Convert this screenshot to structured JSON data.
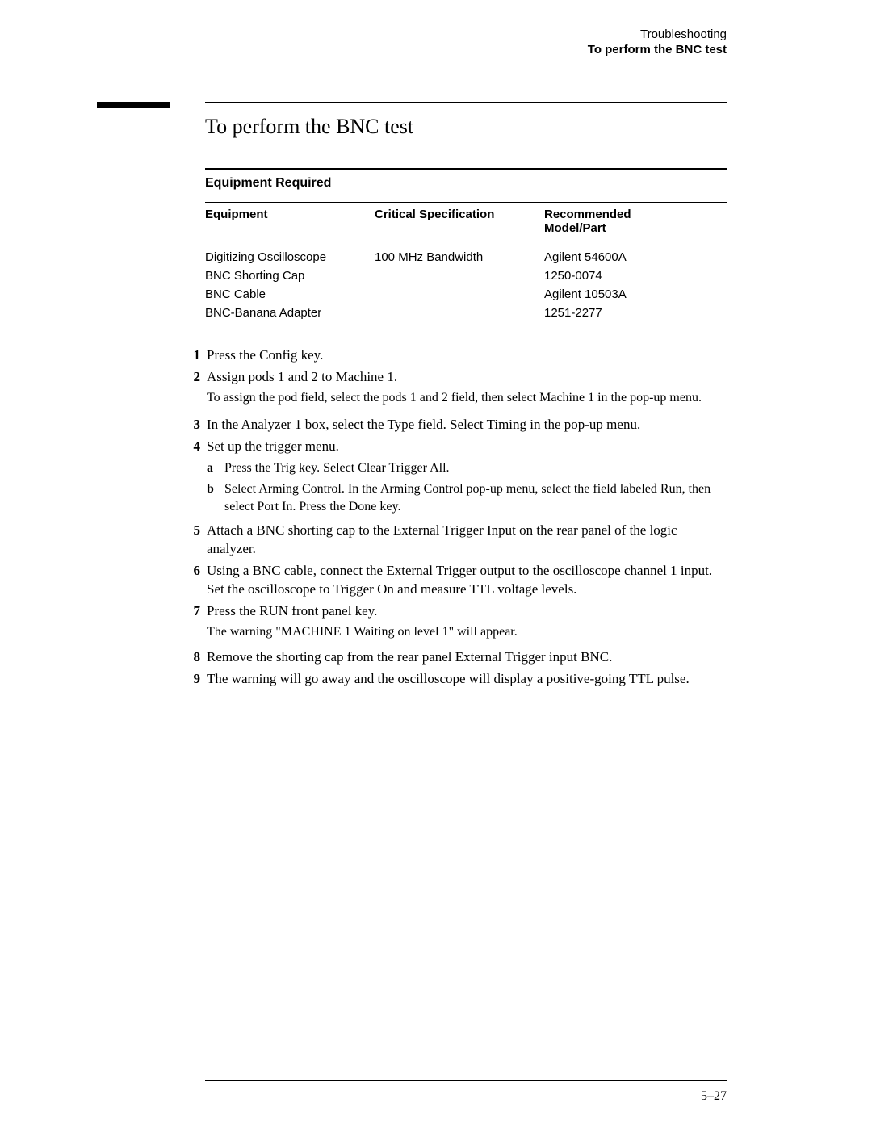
{
  "header": {
    "line1": "Troubleshooting",
    "line2": "To perform the BNC test"
  },
  "section_title": "To perform the BNC test",
  "equipment": {
    "caption": "Equipment Required",
    "columns": [
      "Equipment",
      "Critical Specification",
      "Recommended Model/Part"
    ],
    "rows": [
      {
        "c1": "Digitizing Oscilloscope",
        "c2": "100 MHz Bandwidth",
        "c3": "Agilent 54600A"
      },
      {
        "c1": "BNC Shorting Cap",
        "c2": "",
        "c3": "1250-0074"
      },
      {
        "c1": "BNC Cable",
        "c2": "",
        "c3": "Agilent 10503A"
      },
      {
        "c1": "BNC-Banana Adapter",
        "c2": "",
        "c3": "1251-2277"
      }
    ]
  },
  "steps": [
    {
      "n": "1",
      "text": "Press the Config key."
    },
    {
      "n": "2",
      "text": "Assign pods 1 and 2 to Machine 1.",
      "sub": "To assign the pod field, select the pods 1 and 2 field, then select Machine 1 in the pop-up menu."
    },
    {
      "n": "3",
      "text": "In the Analyzer 1 box, select the Type field.  Select Timing in the pop-up menu."
    },
    {
      "n": "4",
      "text": "Set up the trigger menu.",
      "subitems": [
        {
          "l": "a",
          "t": "Press the Trig key.  Select Clear Trigger All."
        },
        {
          "l": "b",
          "t": "Select Arming Control.  In the Arming Control pop-up menu, select the field labeled Run, then select Port In.  Press the Done key."
        }
      ]
    },
    {
      "n": "5",
      "text": "Attach a BNC shorting cap to the External Trigger Input on the rear panel of the logic analyzer."
    },
    {
      "n": "6",
      "text": "Using a BNC cable, connect the External Trigger output to the oscilloscope channel 1 input.  Set the oscilloscope to Trigger On and measure TTL voltage levels."
    },
    {
      "n": "7",
      "text": "Press the RUN front panel key.",
      "note": "The warning \"MACHINE 1 Waiting on level 1\" will appear."
    },
    {
      "n": "8",
      "text": "Remove the shorting cap from the rear panel External Trigger input BNC."
    },
    {
      "n": "9",
      "text": "The warning will go away and the oscilloscope will display a positive-going TTL pulse."
    }
  ],
  "page_number": "5–27",
  "colors": {
    "text": "#000000",
    "background": "#ffffff",
    "rule": "#000000"
  },
  "fonts": {
    "serif": "Georgia",
    "sans": "Arial"
  }
}
